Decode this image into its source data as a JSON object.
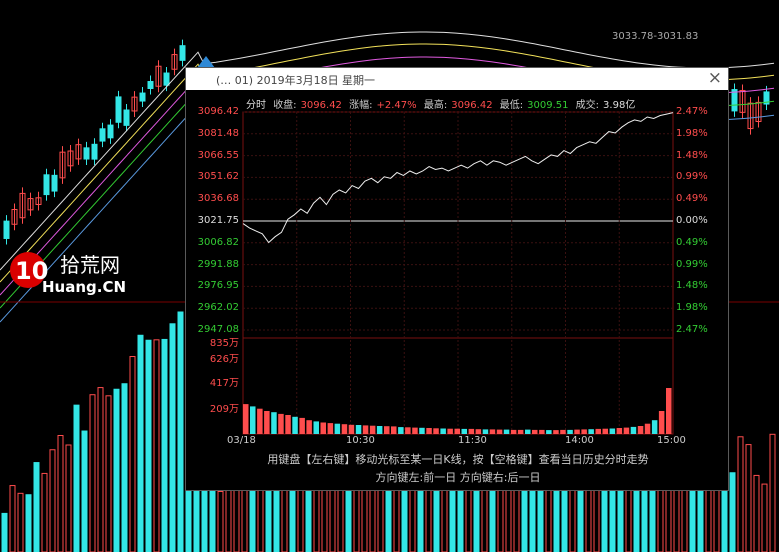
{
  "popup": {
    "title": "(… 01) 2019年3月18日 星期一",
    "close": "×",
    "info": {
      "tab": "分时",
      "close_label": "收盘:",
      "close_value": "3096.42",
      "change_label": "涨幅:",
      "change_value": "+2.47%",
      "high_label": "最高:",
      "high_value": "3096.42",
      "low_label": "最低:",
      "low_value": "3009.51",
      "volume_label": "成交:",
      "volume_value": "3.98亿"
    },
    "help_line1": "用键盘【左右键】移动光标至某一日K线，按【空格键】查看当日历史分时走势",
    "help_line2": "方向键左:前一日    方向键右:后一日"
  },
  "background": {
    "price_label": "3033.78-3031.83",
    "logo_text_cn": "拾荒网",
    "logo_text_en": "Huang.CN",
    "logo_num": "10"
  },
  "chart_data": {
    "type": "line",
    "title": "",
    "price_axis_left": [
      "3096.42",
      "3081.48",
      "3066.55",
      "3051.62",
      "3036.68",
      "3021.75",
      "3006.82",
      "2991.88",
      "2976.95",
      "2962.02",
      "2947.08"
    ],
    "pct_axis_right": [
      "2.47%",
      "1.98%",
      "1.48%",
      "0.99%",
      "0.49%",
      "0.00%",
      "0.49%",
      "0.99%",
      "1.48%",
      "1.98%",
      "2.47%"
    ],
    "ylim": [
      2947.08,
      3096.42
    ],
    "prev_close": 3021.75,
    "volume_axis": [
      "835万",
      "626万",
      "417万",
      "209万"
    ],
    "volume_max": 835,
    "time_labels": [
      "03/18",
      "10:30",
      "11:30",
      "14:00",
      "15:00"
    ],
    "price_series": [
      3020,
      3017,
      3015,
      3013,
      3007,
      3011,
      3014,
      3023,
      3026,
      3030,
      3027,
      3034,
      3038,
      3033,
      3040,
      3043,
      3041,
      3046,
      3044,
      3049,
      3051,
      3048,
      3052,
      3051,
      3055,
      3053,
      3056,
      3054,
      3056,
      3059,
      3057,
      3058,
      3056,
      3058,
      3060,
      3058,
      3061,
      3063,
      3060,
      3063,
      3062,
      3060,
      3062,
      3064,
      3066,
      3063,
      3061,
      3064,
      3067,
      3066,
      3070,
      3068,
      3072,
      3074,
      3076,
      3075,
      3079,
      3083,
      3082,
      3086,
      3089,
      3091,
      3090,
      3093,
      3092,
      3094,
      3095,
      3096
    ],
    "volume_series": [
      260,
      240,
      220,
      200,
      190,
      175,
      165,
      150,
      140,
      120,
      110,
      100,
      95,
      90,
      85,
      80,
      78,
      75,
      72,
      70,
      68,
      66,
      60,
      58,
      56,
      54,
      52,
      50,
      48,
      46,
      46,
      44,
      44,
      42,
      40,
      40,
      38,
      38,
      36,
      36,
      38,
      36,
      36,
      34,
      34,
      36,
      36,
      38,
      40,
      42,
      44,
      46,
      48,
      52,
      56,
      62,
      70,
      90,
      120,
      200,
      400
    ]
  }
}
